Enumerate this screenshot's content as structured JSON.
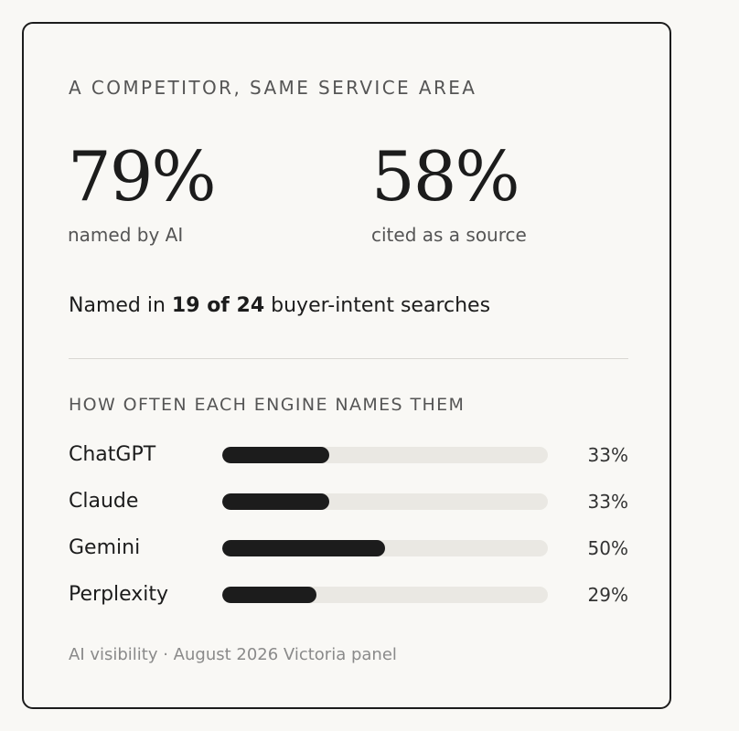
{
  "card": {
    "eyebrow": "A COMPETITOR, SAME SERVICE AREA",
    "stats": [
      {
        "value": "79%",
        "label": "named by AI"
      },
      {
        "value": "58%",
        "label": "cited as a source"
      }
    ],
    "summary": {
      "prefix": "Named in ",
      "highlight": "19 of 24",
      "suffix": " buyer-intent searches"
    },
    "section_title": "HOW OFTEN EACH ENGINE NAMES THEM",
    "engines": [
      {
        "name": "ChatGPT",
        "percent_label": "33%",
        "percent": 33
      },
      {
        "name": "Claude",
        "percent_label": "33%",
        "percent": 33
      },
      {
        "name": "Gemini",
        "percent_label": "50%",
        "percent": 50
      },
      {
        "name": "Perplexity",
        "percent_label": "29%",
        "percent": 29
      }
    ],
    "footer": "AI visibility · August 2026 Victoria panel"
  },
  "colors": {
    "background": "#f9f8f5",
    "ink": "#1c1c1c",
    "muted": "#555555",
    "track": "#eae8e3",
    "footer": "#8a8a8a"
  }
}
